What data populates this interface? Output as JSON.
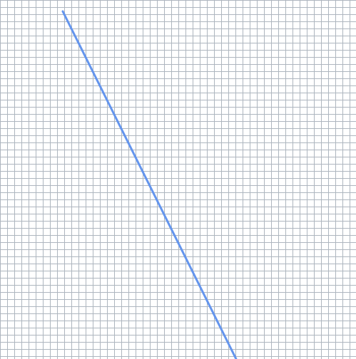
{
  "colors": {
    "background": "#ffffff",
    "grid_line": "#aeb6bf",
    "stroke": "#6495ed"
  }
}
